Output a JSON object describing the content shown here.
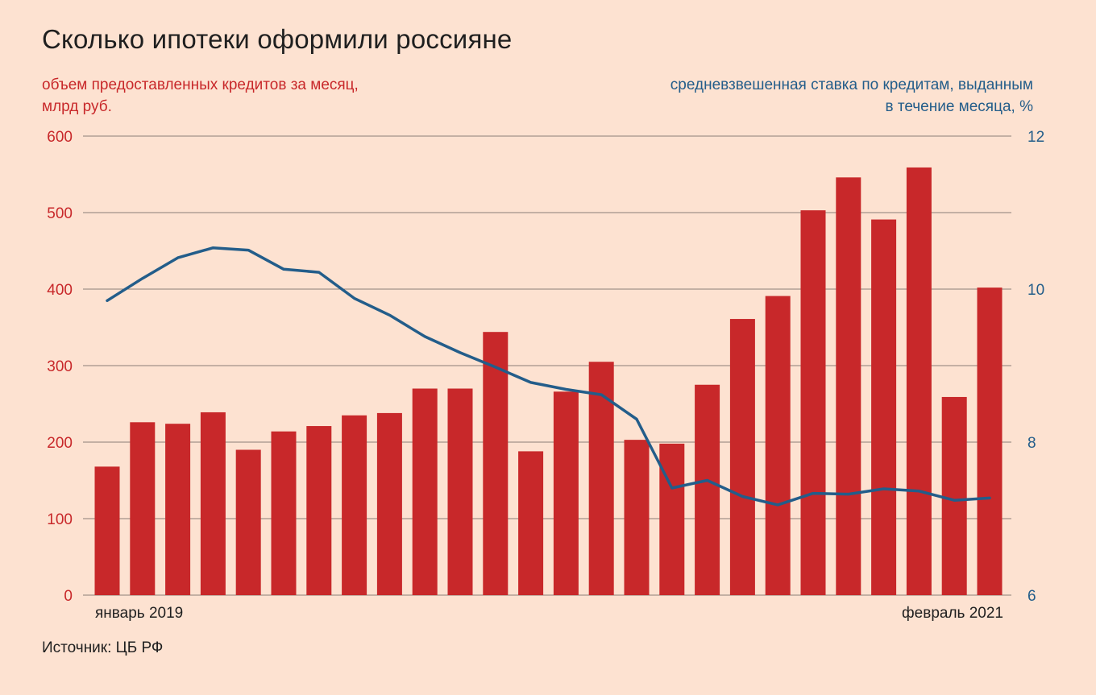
{
  "chart_data": {
    "type": "bar",
    "title": "Сколько ипотеки оформили россияне",
    "left_axis_label": "объем предоставленных кредитов за месяц, млрд руб.",
    "right_axis_label": "средневзвешенная ставка по кредитам, выданным в течение месяца, %",
    "x_start_label": "январь 2019",
    "x_end_label": "февраль 2021",
    "ylim_left": [
      0,
      600
    ],
    "yticks_left": [
      "0",
      "100",
      "200",
      "300",
      "400",
      "500",
      "600"
    ],
    "ylim_right": [
      6,
      12
    ],
    "yticks_right": [
      "6",
      "8",
      "10",
      "12"
    ],
    "grid": true,
    "bar_color": "#c8282a",
    "line_color": "#235d8a",
    "series": [
      {
        "type": "bar",
        "axis": "left",
        "values": [
          168,
          226,
          224,
          239,
          190,
          214,
          221,
          235,
          238,
          270,
          270,
          344,
          188,
          266,
          305,
          203,
          198,
          275,
          361,
          391,
          503,
          546,
          491,
          559,
          259,
          402
        ]
      },
      {
        "type": "line",
        "axis": "right",
        "values": [
          9.85,
          10.14,
          10.41,
          10.54,
          10.51,
          10.26,
          10.22,
          9.88,
          9.66,
          9.38,
          9.17,
          8.98,
          8.78,
          8.69,
          8.62,
          8.3,
          7.4,
          7.5,
          7.29,
          7.18,
          7.33,
          7.32,
          7.39,
          7.36,
          7.24,
          7.27
        ]
      }
    ]
  },
  "source": "Источник: ЦБ РФ"
}
